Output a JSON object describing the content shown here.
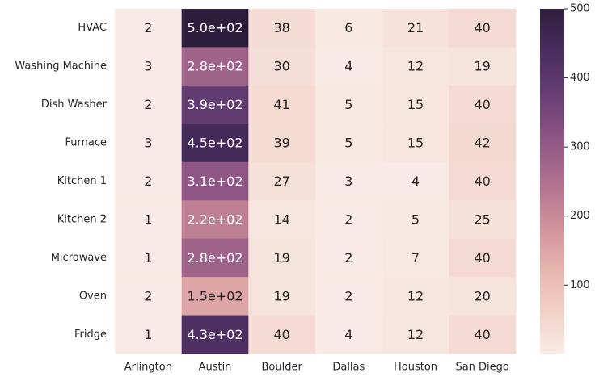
{
  "chart_data": {
    "type": "heatmap",
    "title": "",
    "xlabel": "",
    "ylabel": "",
    "columns": [
      "Arlington",
      "Austin",
      "Boulder",
      "Dallas",
      "Houston",
      "San Diego"
    ],
    "rows": [
      "HVAC",
      "Washing Machine",
      "Dish Washer",
      "Furnace",
      "Kitchen 1",
      "Kitchen 2",
      "Microwave",
      "Oven",
      "Fridge"
    ],
    "values": [
      [
        2,
        500,
        38,
        6,
        21,
        40
      ],
      [
        3,
        280,
        30,
        4,
        12,
        19
      ],
      [
        2,
        390,
        41,
        5,
        15,
        40
      ],
      [
        3,
        450,
        39,
        5,
        15,
        42
      ],
      [
        2,
        310,
        27,
        3,
        4,
        40
      ],
      [
        1,
        220,
        14,
        2,
        5,
        25
      ],
      [
        1,
        280,
        19,
        2,
        7,
        40
      ],
      [
        2,
        150,
        19,
        2,
        12,
        20
      ],
      [
        1,
        430,
        40,
        4,
        12,
        40
      ]
    ],
    "annotations": [
      [
        "2",
        "5.0e+02",
        "38",
        "6",
        "21",
        "40"
      ],
      [
        "3",
        "2.8e+02",
        "30",
        "4",
        "12",
        "19"
      ],
      [
        "2",
        "3.9e+02",
        "41",
        "5",
        "15",
        "40"
      ],
      [
        "3",
        "4.5e+02",
        "39",
        "5",
        "15",
        "42"
      ],
      [
        "2",
        "3.1e+02",
        "27",
        "3",
        "4",
        "40"
      ],
      [
        "1",
        "2.2e+02",
        "14",
        "2",
        "5",
        "25"
      ],
      [
        "1",
        "2.8e+02",
        "19",
        "2",
        "7",
        "40"
      ],
      [
        "2",
        "1.5e+02",
        "19",
        "2",
        "12",
        "20"
      ],
      [
        "1",
        "4.3e+02",
        "40",
        "4",
        "12",
        "40"
      ]
    ],
    "colorbar": {
      "ticks": [
        100,
        200,
        300,
        400,
        500
      ],
      "range": [
        1,
        500
      ]
    },
    "colormap": [
      "#f8ebe5",
      "#f2d0c6",
      "#e6b3ad",
      "#cf8f9c",
      "#b0708f",
      "#8d5584",
      "#693f76",
      "#4a2d5e",
      "#2d1e3e"
    ],
    "text_colors": {
      "light": "#ffffff",
      "dark": "#262626"
    }
  }
}
